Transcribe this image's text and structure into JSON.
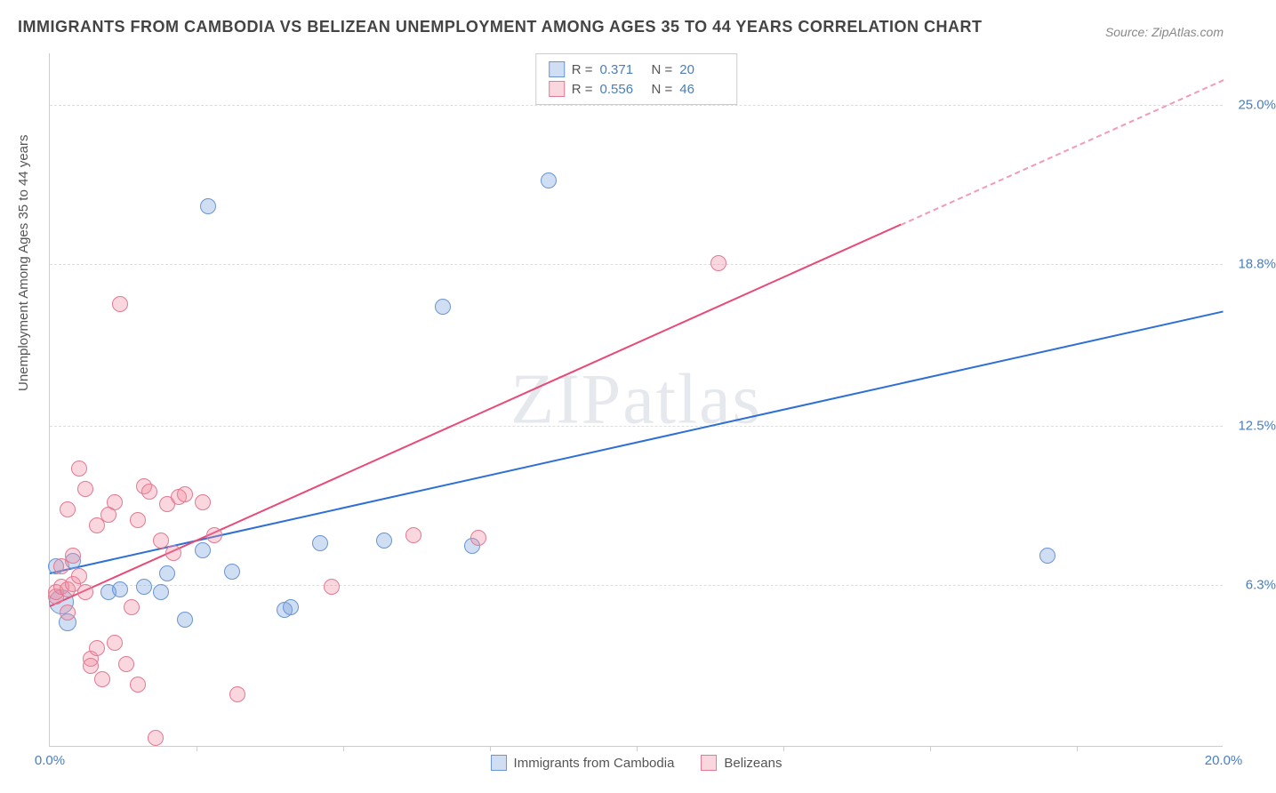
{
  "title": "IMMIGRANTS FROM CAMBODIA VS BELIZEAN UNEMPLOYMENT AMONG AGES 35 TO 44 YEARS CORRELATION CHART",
  "source": "Source: ZipAtlas.com",
  "watermark": "ZIPatlas",
  "y_axis_label": "Unemployment Among Ages 35 to 44 years",
  "chart": {
    "type": "scatter-correlation",
    "xlim": [
      0,
      20
    ],
    "ylim": [
      0,
      27
    ],
    "x_ticks": [
      0,
      20
    ],
    "x_tick_labels": [
      "0.0%",
      "20.0%"
    ],
    "x_minor_ticks": [
      2.5,
      5,
      7.5,
      10,
      12.5,
      15,
      17.5
    ],
    "y_ticks": [
      6.3,
      12.5,
      18.8,
      25.0
    ],
    "y_tick_labels": [
      "6.3%",
      "12.5%",
      "18.8%",
      "25.0%"
    ],
    "background_color": "#ffffff",
    "grid_color": "#dddddd",
    "axis_color": "#cccccc",
    "series": [
      {
        "name": "Immigrants from Cambodia",
        "fill": "rgba(120, 160, 220, 0.35)",
        "stroke": "#6a95d0",
        "trend_color": "#2e6fd6",
        "R": "0.371",
        "N": "20",
        "trend": {
          "x1": 0,
          "y1": 6.8,
          "x2": 20,
          "y2": 17.0,
          "dashed_from": null
        },
        "marker_radius": 9,
        "points": [
          {
            "x": 0.2,
            "y": 5.6,
            "r": 14
          },
          {
            "x": 0.3,
            "y": 4.8,
            "r": 10
          },
          {
            "x": 0.1,
            "y": 7.0,
            "r": 9
          },
          {
            "x": 0.4,
            "y": 7.2,
            "r": 9
          },
          {
            "x": 1.0,
            "y": 6.0,
            "r": 9
          },
          {
            "x": 1.2,
            "y": 6.1,
            "r": 9
          },
          {
            "x": 1.6,
            "y": 6.2,
            "r": 9
          },
          {
            "x": 1.9,
            "y": 6.0,
            "r": 9
          },
          {
            "x": 2.0,
            "y": 6.7,
            "r": 9
          },
          {
            "x": 2.3,
            "y": 4.9,
            "r": 9
          },
          {
            "x": 2.6,
            "y": 7.6,
            "r": 9
          },
          {
            "x": 3.1,
            "y": 6.8,
            "r": 9
          },
          {
            "x": 4.0,
            "y": 5.3,
            "r": 9
          },
          {
            "x": 4.1,
            "y": 5.4,
            "r": 9
          },
          {
            "x": 4.6,
            "y": 7.9,
            "r": 9
          },
          {
            "x": 5.7,
            "y": 8.0,
            "r": 9
          },
          {
            "x": 7.2,
            "y": 7.8,
            "r": 9
          },
          {
            "x": 2.7,
            "y": 21.0,
            "r": 9
          },
          {
            "x": 6.7,
            "y": 17.1,
            "r": 9
          },
          {
            "x": 8.5,
            "y": 22.0,
            "r": 9
          },
          {
            "x": 17.0,
            "y": 7.4,
            "r": 9
          }
        ]
      },
      {
        "name": "Belizeans",
        "fill": "rgba(240, 140, 160, 0.35)",
        "stroke": "#e17a93",
        "trend_color": "#e84a77",
        "R": "0.556",
        "N": "46",
        "trend": {
          "x1": 0,
          "y1": 5.5,
          "x2": 20,
          "y2": 26.0,
          "dashed_from": 14.5
        },
        "marker_radius": 9,
        "points": [
          {
            "x": 0.1,
            "y": 5.8
          },
          {
            "x": 0.1,
            "y": 6.0
          },
          {
            "x": 0.2,
            "y": 6.2
          },
          {
            "x": 0.2,
            "y": 7.0
          },
          {
            "x": 0.3,
            "y": 6.1
          },
          {
            "x": 0.3,
            "y": 5.2
          },
          {
            "x": 0.3,
            "y": 9.2
          },
          {
            "x": 0.4,
            "y": 6.3
          },
          {
            "x": 0.4,
            "y": 7.4
          },
          {
            "x": 0.5,
            "y": 6.6
          },
          {
            "x": 0.5,
            "y": 10.8
          },
          {
            "x": 0.6,
            "y": 6.0
          },
          {
            "x": 0.6,
            "y": 10.0
          },
          {
            "x": 0.7,
            "y": 3.4
          },
          {
            "x": 0.7,
            "y": 3.1
          },
          {
            "x": 0.8,
            "y": 3.8
          },
          {
            "x": 0.8,
            "y": 8.6
          },
          {
            "x": 0.9,
            "y": 2.6
          },
          {
            "x": 1.0,
            "y": 9.0
          },
          {
            "x": 1.1,
            "y": 4.0
          },
          {
            "x": 1.1,
            "y": 9.5
          },
          {
            "x": 1.2,
            "y": 17.2
          },
          {
            "x": 1.3,
            "y": 3.2
          },
          {
            "x": 1.4,
            "y": 5.4
          },
          {
            "x": 1.5,
            "y": 2.4
          },
          {
            "x": 1.5,
            "y": 8.8
          },
          {
            "x": 1.6,
            "y": 10.1
          },
          {
            "x": 1.7,
            "y": 9.9
          },
          {
            "x": 1.8,
            "y": 0.3
          },
          {
            "x": 1.9,
            "y": 8.0
          },
          {
            "x": 2.0,
            "y": 9.4
          },
          {
            "x": 2.1,
            "y": 7.5
          },
          {
            "x": 2.2,
            "y": 9.7
          },
          {
            "x": 2.3,
            "y": 9.8
          },
          {
            "x": 2.6,
            "y": 9.5
          },
          {
            "x": 2.8,
            "y": 8.2
          },
          {
            "x": 3.2,
            "y": 2.0
          },
          {
            "x": 4.8,
            "y": 6.2
          },
          {
            "x": 6.2,
            "y": 8.2
          },
          {
            "x": 7.3,
            "y": 8.1
          },
          {
            "x": 11.4,
            "y": 18.8
          }
        ]
      }
    ]
  },
  "legend_top_labels": {
    "R": "R  =",
    "N": "N  ="
  },
  "colors": {
    "title": "#444444",
    "label_accent": "#4a7ebb"
  }
}
